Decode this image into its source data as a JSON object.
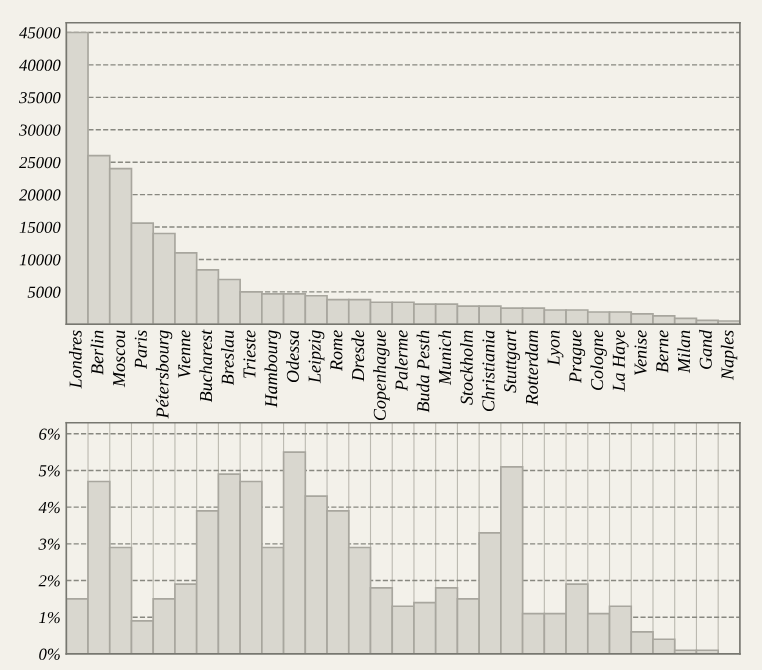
{
  "chart_data": [
    {
      "type": "bar",
      "categories": [
        "Londres",
        "Berlin",
        "Moscou",
        "Paris",
        "Pétersbourg",
        "Vienne",
        "Bucharest",
        "Breslau",
        "Trieste",
        "Hambourg",
        "Odessa",
        "Leipzig",
        "Rome",
        "Dresde",
        "Copenhague",
        "Palerme",
        "Buda Pesth",
        "Munich",
        "Stockholm",
        "Christiania",
        "Stuttgart",
        "Rotterdam",
        "Lyon",
        "Prague",
        "Cologne",
        "La Haye",
        "Venise",
        "Berne",
        "Milan",
        "Gand",
        "Naples"
      ],
      "values": [
        45000,
        26000,
        24000,
        15600,
        14000,
        11000,
        8400,
        6900,
        5000,
        4700,
        4700,
        4400,
        3800,
        3800,
        3400,
        3400,
        3100,
        3100,
        2800,
        2800,
        2500,
        2500,
        2200,
        2200,
        1900,
        1900,
        1600,
        1300,
        900,
        600,
        500
      ],
      "color": "#d9d7cf",
      "ylim": [
        0,
        46500
      ],
      "yticks": [
        5000,
        10000,
        15000,
        20000,
        25000,
        30000,
        35000,
        40000,
        45000
      ],
      "grid": "y"
    },
    {
      "type": "bar",
      "categories": [
        null,
        null,
        null,
        null,
        null,
        null,
        null,
        null,
        null,
        null,
        null,
        null,
        null,
        null,
        null,
        null,
        null,
        null,
        null,
        null,
        null,
        null,
        null,
        null,
        null,
        null,
        null,
        null,
        null,
        null,
        null
      ],
      "values": [
        1.5,
        4.7,
        2.9,
        0.9,
        1.5,
        1.9,
        3.9,
        4.9,
        4.7,
        2.9,
        5.5,
        4.3,
        3.9,
        2.9,
        1.8,
        1.3,
        1.4,
        1.8,
        1.5,
        3.3,
        5.1,
        1.1,
        1.1,
        1.9,
        1.1,
        1.3,
        0.6,
        0.4,
        0.1,
        0.1,
        null
      ],
      "color": "#d9d7cf",
      "ylim": [
        0,
        6.3
      ],
      "yticks": [
        {
          "value": 0,
          "label": "0%"
        },
        {
          "value": 1,
          "label": "1%"
        },
        {
          "value": 2,
          "label": "2%"
        },
        {
          "value": 3,
          "label": "3%"
        },
        {
          "value": 4,
          "label": "4%"
        },
        {
          "value": 5,
          "label": "5%"
        },
        {
          "value": 6,
          "label": "6%"
        }
      ],
      "grid": true,
      "tick_labels": "y"
    }
  ]
}
